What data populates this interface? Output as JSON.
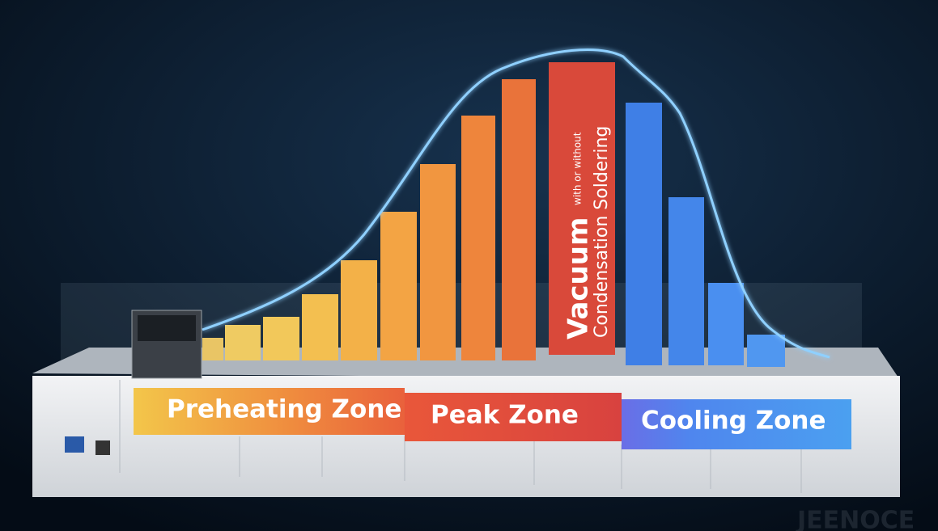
{
  "zones": {
    "preheating": "Preheating Zone",
    "peak": "Peak Zone",
    "cooling": "Cooling Zone"
  },
  "peak_bar": {
    "title": "Vacuum",
    "qualifier": "with or without",
    "subtitle": "Condensation Soldering"
  },
  "watermark": "JEENOCE"
}
